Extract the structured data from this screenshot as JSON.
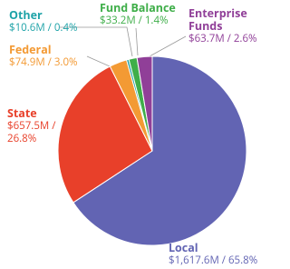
{
  "chart_data": {
    "type": "pie",
    "categories": [
      "Local",
      "State",
      "Federal",
      "Other",
      "Fund Balance",
      "Enterprise Funds"
    ],
    "values": [
      65.8,
      26.8,
      3.0,
      0.4,
      1.4,
      2.6
    ],
    "value_labels": [
      "$1,617.6M / 65.8%",
      "$657.5M / 26.8%",
      "$74.9M / 3.0%",
      "$10.6M / 0.4%",
      "$33.2M / 1.4%",
      "$63.7M / 2.6%"
    ],
    "colors": [
      "#6264b3",
      "#e8402a",
      "#f39a34",
      "#1fa3a8",
      "#3fae49",
      "#903f98"
    ]
  }
}
